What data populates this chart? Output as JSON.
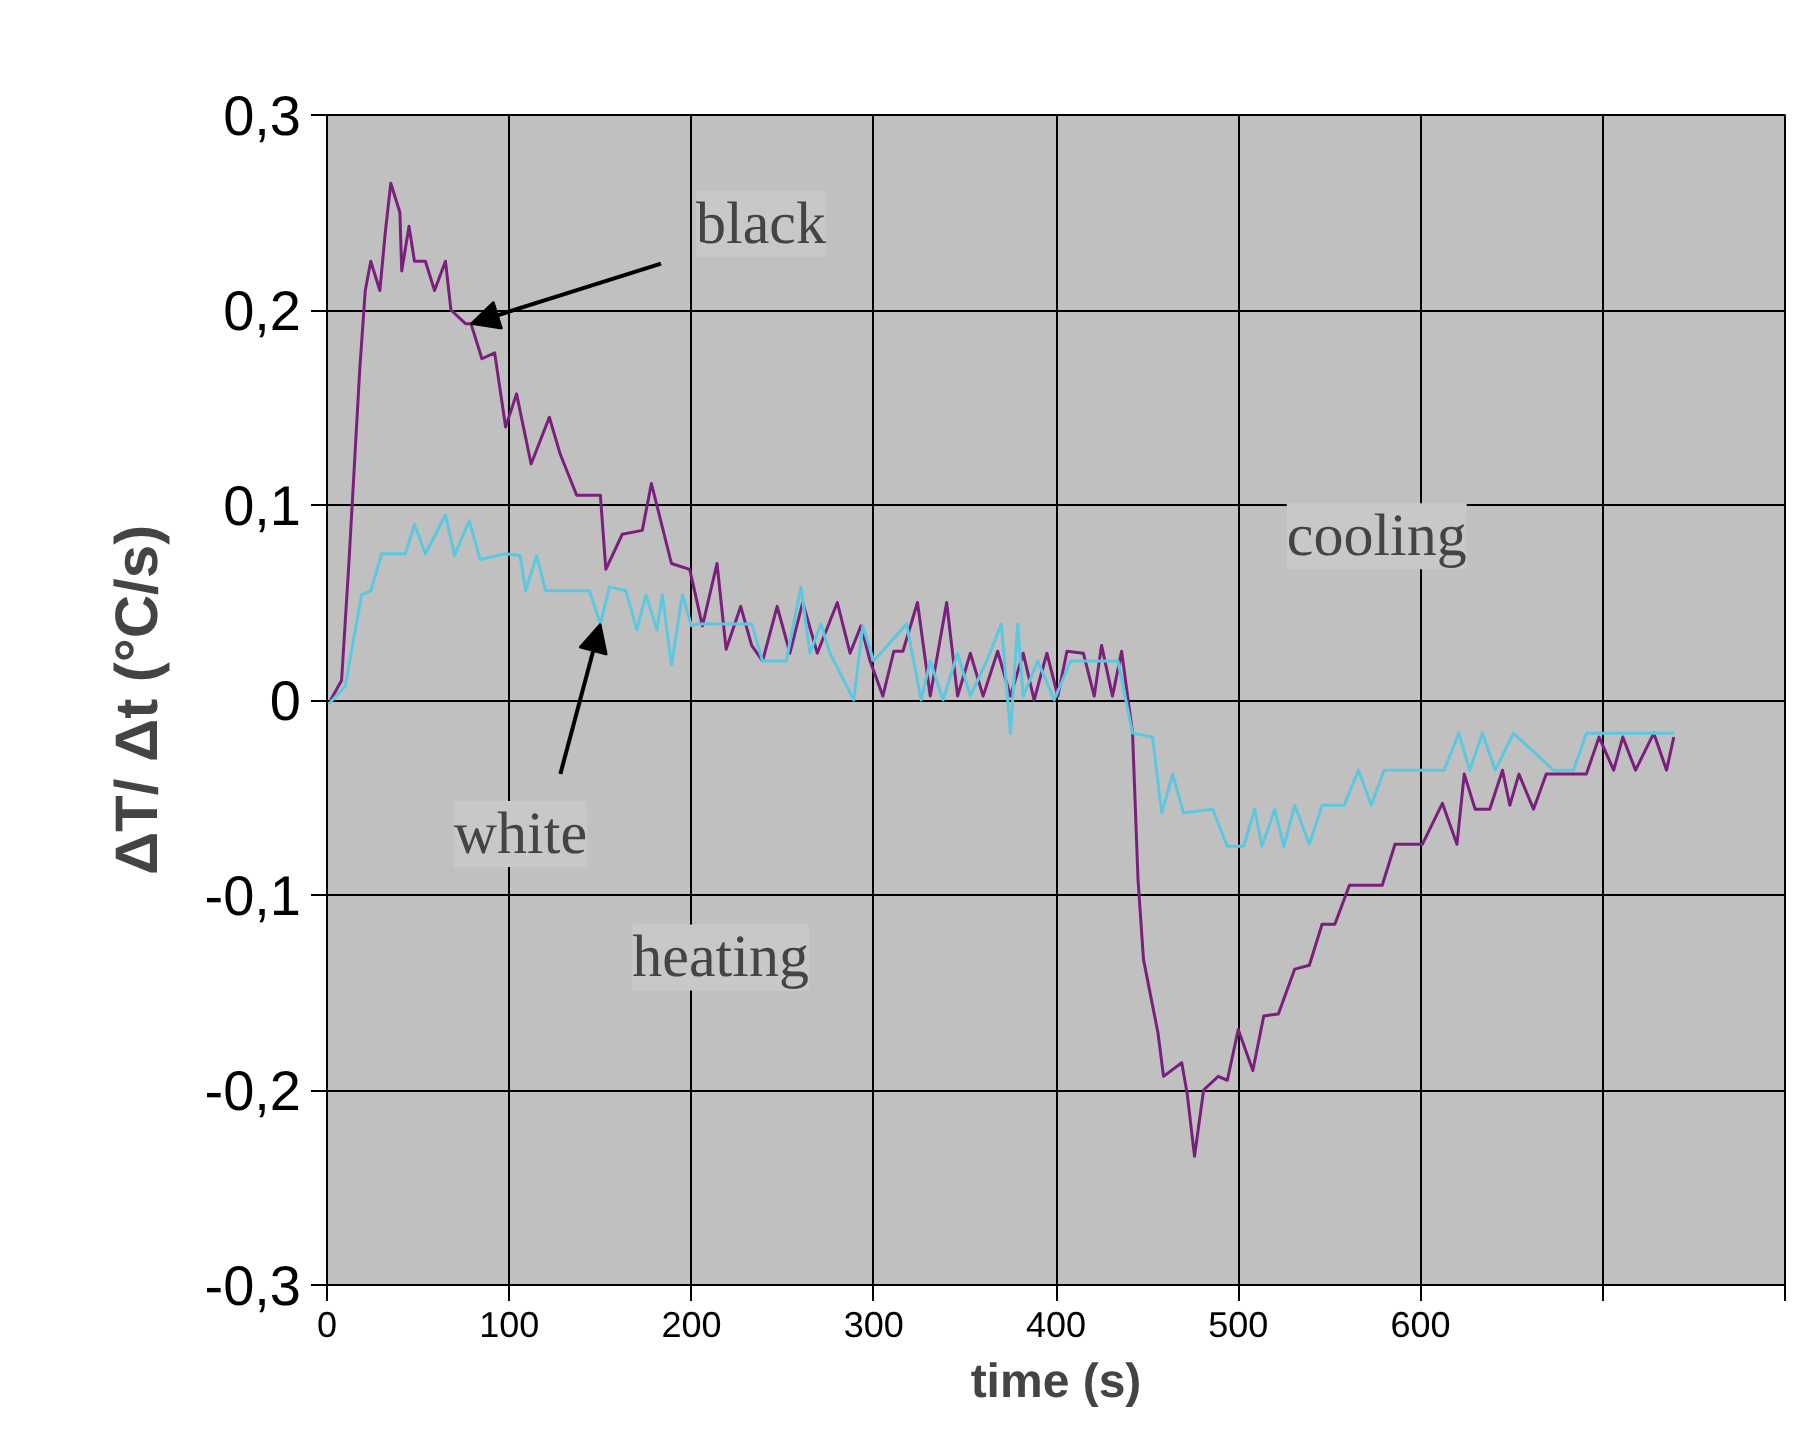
{
  "chart_data": {
    "type": "line",
    "xlabel": "time (s)",
    "ylabel": "ΔT/ Δt (°C/s)",
    "xlim": [
      0,
      800
    ],
    "ylim": [
      -0.3,
      0.3
    ],
    "xticks": [
      0,
      100,
      200,
      300,
      400,
      500,
      600,
      {
        "value": 700,
        "label": null
      },
      {
        "value": 800,
        "label": null
      }
    ],
    "yticks": [
      {
        "value": -0.3,
        "label": "-0,3"
      },
      {
        "value": -0.2,
        "label": "-0,2"
      },
      {
        "value": -0.1,
        "label": "-0,1"
      },
      0,
      {
        "value": 0.1,
        "label": "0,1"
      },
      {
        "value": 0.2,
        "label": "0,2"
      },
      {
        "value": 0.3,
        "label": "0,3"
      }
    ],
    "grid": true,
    "line_style": "solid",
    "series": [
      {
        "color": "#7b1f7d",
        "x": [
          2,
          8,
          12,
          18,
          21,
          24,
          29,
          32,
          35,
          40,
          41,
          45,
          48,
          54,
          59,
          65,
          68,
          76,
          79,
          85,
          92,
          98,
          104,
          112,
          122,
          128,
          137,
          150,
          153,
          162,
          173,
          178,
          189,
          199,
          206,
          214,
          219,
          227,
          233,
          239,
          247,
          254,
          261,
          269,
          280,
          287,
          293,
          298,
          305,
          311,
          316,
          324,
          331,
          340,
          346,
          353,
          360,
          368,
          375,
          382,
          388,
          395,
          401,
          406,
          415,
          421,
          425,
          431,
          436,
          442,
          445,
          448,
          456,
          459,
          469,
          472,
          476,
          481,
          489,
          494,
          500,
          508,
          514,
          522,
          531,
          539,
          546,
          553,
          561,
          579,
          586,
          601,
          612,
          620,
          624,
          630,
          638,
          645,
          649,
          654,
          662,
          669,
          691,
          698,
          706,
          711,
          718,
          728,
          735,
          739
        ],
        "values": [
          0,
          0.01,
          0.07,
          0.17,
          0.21,
          0.225,
          0.21,
          0.24,
          0.265,
          0.25,
          0.22,
          0.243,
          0.225,
          0.225,
          0.21,
          0.225,
          0.2,
          0.193,
          0.193,
          0.175,
          0.178,
          0.14,
          0.157,
          0.121,
          0.145,
          0.126,
          0.105,
          0.105,
          0.067,
          0.085,
          0.087,
          0.111,
          0.07,
          0.067,
          0.038,
          0.07,
          0.026,
          0.048,
          0.028,
          0.02,
          0.048,
          0.024,
          0.05,
          0.024,
          0.05,
          0.024,
          0.038,
          0.02,
          0.002,
          0.025,
          0.025,
          0.05,
          0.002,
          0.05,
          0.002,
          0.024,
          0.002,
          0.025,
          0.002,
          0.024,
          0,
          0.024,
          0.002,
          0.025,
          0.024,
          0.002,
          0.028,
          0.002,
          0.025,
          -0.017,
          -0.092,
          -0.133,
          -0.171,
          -0.193,
          -0.186,
          -0.202,
          -0.234,
          -0.2,
          -0.193,
          -0.195,
          -0.169,
          -0.19,
          -0.162,
          -0.161,
          -0.138,
          -0.136,
          -0.115,
          -0.115,
          -0.095,
          -0.095,
          -0.074,
          -0.074,
          -0.053,
          -0.074,
          -0.038,
          -0.056,
          -0.056,
          -0.036,
          -0.054,
          -0.038,
          -0.056,
          -0.038,
          -0.038,
          -0.019,
          -0.036,
          -0.019,
          -0.036,
          -0.017,
          -0.036,
          -0.019
        ]
      },
      {
        "color": "#5bc8e0",
        "x": [
          1,
          10,
          19,
          24,
          30,
          43,
          48,
          54,
          65,
          70,
          78,
          84,
          98,
          106,
          109,
          115,
          120,
          144,
          150,
          155,
          164,
          170,
          175,
          181,
          184,
          189,
          195,
          200,
          203,
          233,
          239,
          252,
          260,
          265,
          271,
          276,
          289,
          294,
          300,
          318,
          326,
          331,
          338,
          346,
          353,
          362,
          370,
          375,
          379,
          382,
          390,
          399,
          408,
          434,
          442,
          453,
          458,
          464,
          470,
          486,
          494,
          503,
          509,
          513,
          520,
          525,
          531,
          539,
          546,
          558,
          566,
          573,
          580,
          613,
          621,
          627,
          634,
          641,
          651,
          673,
          684,
          691,
          739
        ],
        "values": [
          -0.002,
          0.007,
          0.054,
          0.056,
          0.075,
          0.075,
          0.09,
          0.075,
          0.095,
          0.074,
          0.092,
          0.072,
          0.075,
          0.074,
          0.056,
          0.074,
          0.056,
          0.056,
          0.039,
          0.058,
          0.056,
          0.036,
          0.054,
          0.036,
          0.054,
          0.018,
          0.054,
          0.038,
          0.039,
          0.039,
          0.02,
          0.02,
          0.058,
          0.024,
          0.039,
          0.024,
          0,
          0.038,
          0.02,
          0.039,
          0,
          0.02,
          0,
          0.024,
          0.002,
          0.02,
          0.039,
          -0.017,
          0.039,
          0.002,
          0.02,
          0,
          0.02,
          0.02,
          -0.017,
          -0.019,
          -0.058,
          -0.038,
          -0.058,
          -0.056,
          -0.075,
          -0.075,
          -0.056,
          -0.075,
          -0.056,
          -0.075,
          -0.054,
          -0.074,
          -0.054,
          -0.054,
          -0.036,
          -0.054,
          -0.036,
          -0.036,
          -0.017,
          -0.036,
          -0.017,
          -0.036,
          -0.017,
          -0.036,
          -0.036,
          -0.017,
          -0.017
        ]
      }
    ],
    "annotations": [
      {
        "text": "black",
        "x": 79,
        "y": 0.193
      },
      {
        "text": "white",
        "x": 150,
        "y": 0.039
      },
      "heating",
      "cooling"
    ]
  }
}
